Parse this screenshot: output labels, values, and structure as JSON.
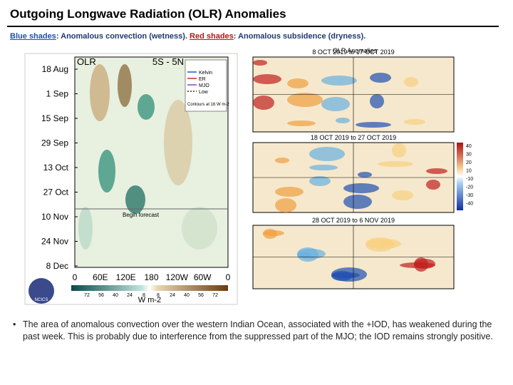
{
  "header": {
    "title": "Outgoing Longwave Radiation (OLR) Anomalies",
    "subtitle": {
      "blue": "Blue shades",
      "blue_text": ": Anomalous convection (wetness). ",
      "red": "Red shades",
      "red_text": ": Anomalous subsidence (dryness)."
    }
  },
  "hovmoller": {
    "title": "OLR",
    "region": "5S - 5N",
    "y_labels": [
      "18 Aug",
      "1 Sep",
      "15 Sep",
      "29 Sep",
      "13 Oct",
      "27 Oct",
      "10 Nov",
      "24 Nov",
      "8 Dec"
    ],
    "x_labels": [
      "0",
      "60E",
      "120E",
      "180",
      "120W",
      "60W",
      "0"
    ],
    "legend": [
      "Kelvin",
      "ER",
      "MJO",
      "Low"
    ],
    "contour_note": "Contours at 16 W m-2",
    "annotation": "Begin forecast",
    "colorbar_labels": [
      "72",
      "56",
      "40",
      "24",
      "8",
      "8",
      "24",
      "40",
      "56",
      "72"
    ],
    "unit": "W m-2",
    "logo": "NCICS"
  },
  "maps": {
    "title": "OLR Anomalies",
    "panels": [
      "8 OCT 2019 to 17 OCT 2019",
      "18 OCT 2019 to 27 OCT 2019",
      "28 OCT 2019 to 6 NOV 2019"
    ],
    "colorbar_labels": [
      "40",
      "30",
      "20",
      "10",
      "-10",
      "-20",
      "-30",
      "-40"
    ]
  },
  "bullet": "The area of anomalous convection over the western Indian Ocean, associated with the +IOD, has weakened during the past week. This is probably due to interference from the suppressed part of the MJO; the IOD remains strongly positive."
}
